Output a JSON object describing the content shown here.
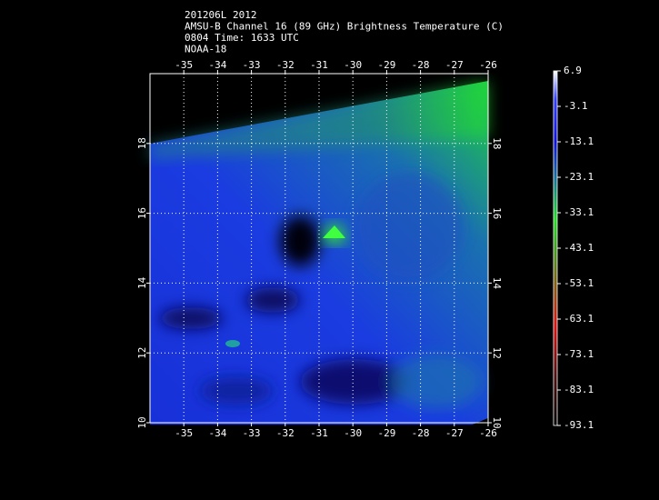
{
  "header": {
    "lines": [
      "201206L 2012",
      "AMSU-B Channel 16 (89 GHz) Brightness Temperature (C)",
      "0804 Time: 1633 UTC",
      "NOAA-18"
    ]
  },
  "map": {
    "xlim": [
      -36,
      -26
    ],
    "ylim": [
      10,
      20
    ],
    "xticks": [
      -35,
      -34,
      -33,
      -32,
      -31,
      -30,
      -29,
      -28,
      -27,
      -26
    ],
    "yticks": [
      10,
      12,
      14,
      16,
      18
    ],
    "grid": true
  },
  "colorbar": {
    "lim": [
      -93.1,
      6.9
    ],
    "ticks": [
      6.9,
      -3.1,
      -13.1,
      -23.1,
      -33.1,
      -43.1,
      -53.1,
      -63.1,
      -73.1,
      -83.1,
      -93.1
    ]
  }
}
